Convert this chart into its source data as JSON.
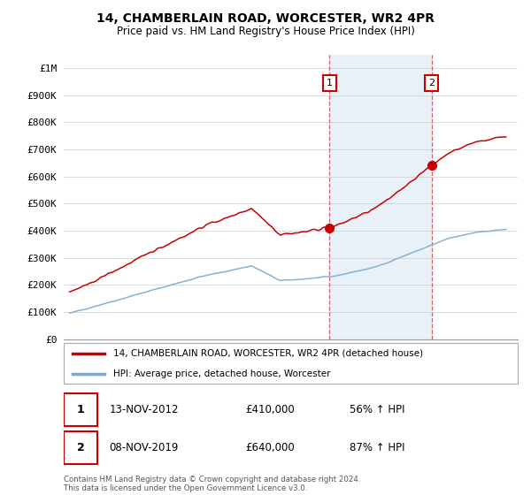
{
  "title": "14, CHAMBERLAIN ROAD, WORCESTER, WR2 4PR",
  "subtitle": "Price paid vs. HM Land Registry's House Price Index (HPI)",
  "legend_line1": "14, CHAMBERLAIN ROAD, WORCESTER, WR2 4PR (detached house)",
  "legend_line2": "HPI: Average price, detached house, Worcester",
  "footer": "Contains HM Land Registry data © Crown copyright and database right 2024.\nThis data is licensed under the Open Government Licence v3.0.",
  "annotation1_date": "13-NOV-2012",
  "annotation1_price": "£410,000",
  "annotation1_hpi": "56% ↑ HPI",
  "annotation2_date": "08-NOV-2019",
  "annotation2_price": "£640,000",
  "annotation2_hpi": "87% ↑ HPI",
  "red_color": "#cc0000",
  "blue_color": "#7aaacf",
  "dashed_color": "#cc6666",
  "highlight_bg": "#ddeeff",
  "ylim_max": 1050000,
  "ylim_min": 0,
  "sale1_year": 2012.875,
  "sale2_year": 2019.875,
  "sale1_price": 410000,
  "sale2_price": 640000
}
